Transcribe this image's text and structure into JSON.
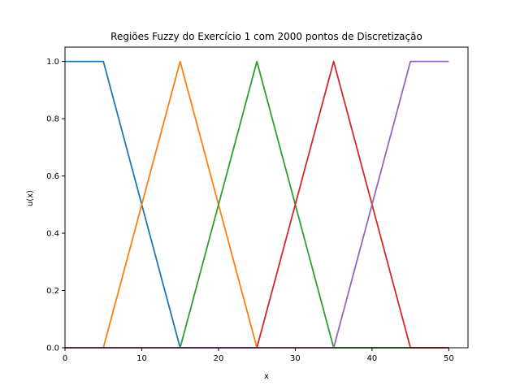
{
  "chart_data": {
    "type": "line",
    "title": "Regiões Fuzzy do Exercício 1 com 2000 pontos de Discretização",
    "xlabel": "x",
    "ylabel": "u(x)",
    "xlim": [
      0,
      52.5
    ],
    "ylim": [
      0,
      1.05
    ],
    "xticks": [
      0,
      10,
      20,
      30,
      40,
      50
    ],
    "xtick_labels": [
      "0",
      "10",
      "20",
      "30",
      "40",
      "50"
    ],
    "yticks": [
      0.0,
      0.2,
      0.4,
      0.6,
      0.8,
      1.0
    ],
    "ytick_labels": [
      "0.0",
      "0.2",
      "0.4",
      "0.6",
      "0.8",
      "1.0"
    ],
    "grid": false,
    "series": [
      {
        "color": "#1f77b4",
        "x": [
          0,
          5,
          15,
          50
        ],
        "y": [
          1,
          1,
          0,
          0
        ]
      },
      {
        "color": "#ff7f0e",
        "x": [
          0,
          5,
          15,
          25,
          50
        ],
        "y": [
          0,
          0,
          1,
          0,
          0
        ]
      },
      {
        "color": "#2ca02c",
        "x": [
          0,
          15,
          25,
          35,
          50
        ],
        "y": [
          0,
          0,
          1,
          0,
          0
        ]
      },
      {
        "color": "#d62728",
        "x": [
          0,
          25,
          35,
          45,
          50
        ],
        "y": [
          0,
          0,
          1,
          0,
          0
        ]
      },
      {
        "color": "#9467bd",
        "x": [
          0,
          35,
          45,
          50
        ],
        "y": [
          0,
          0,
          1,
          1
        ]
      }
    ]
  }
}
